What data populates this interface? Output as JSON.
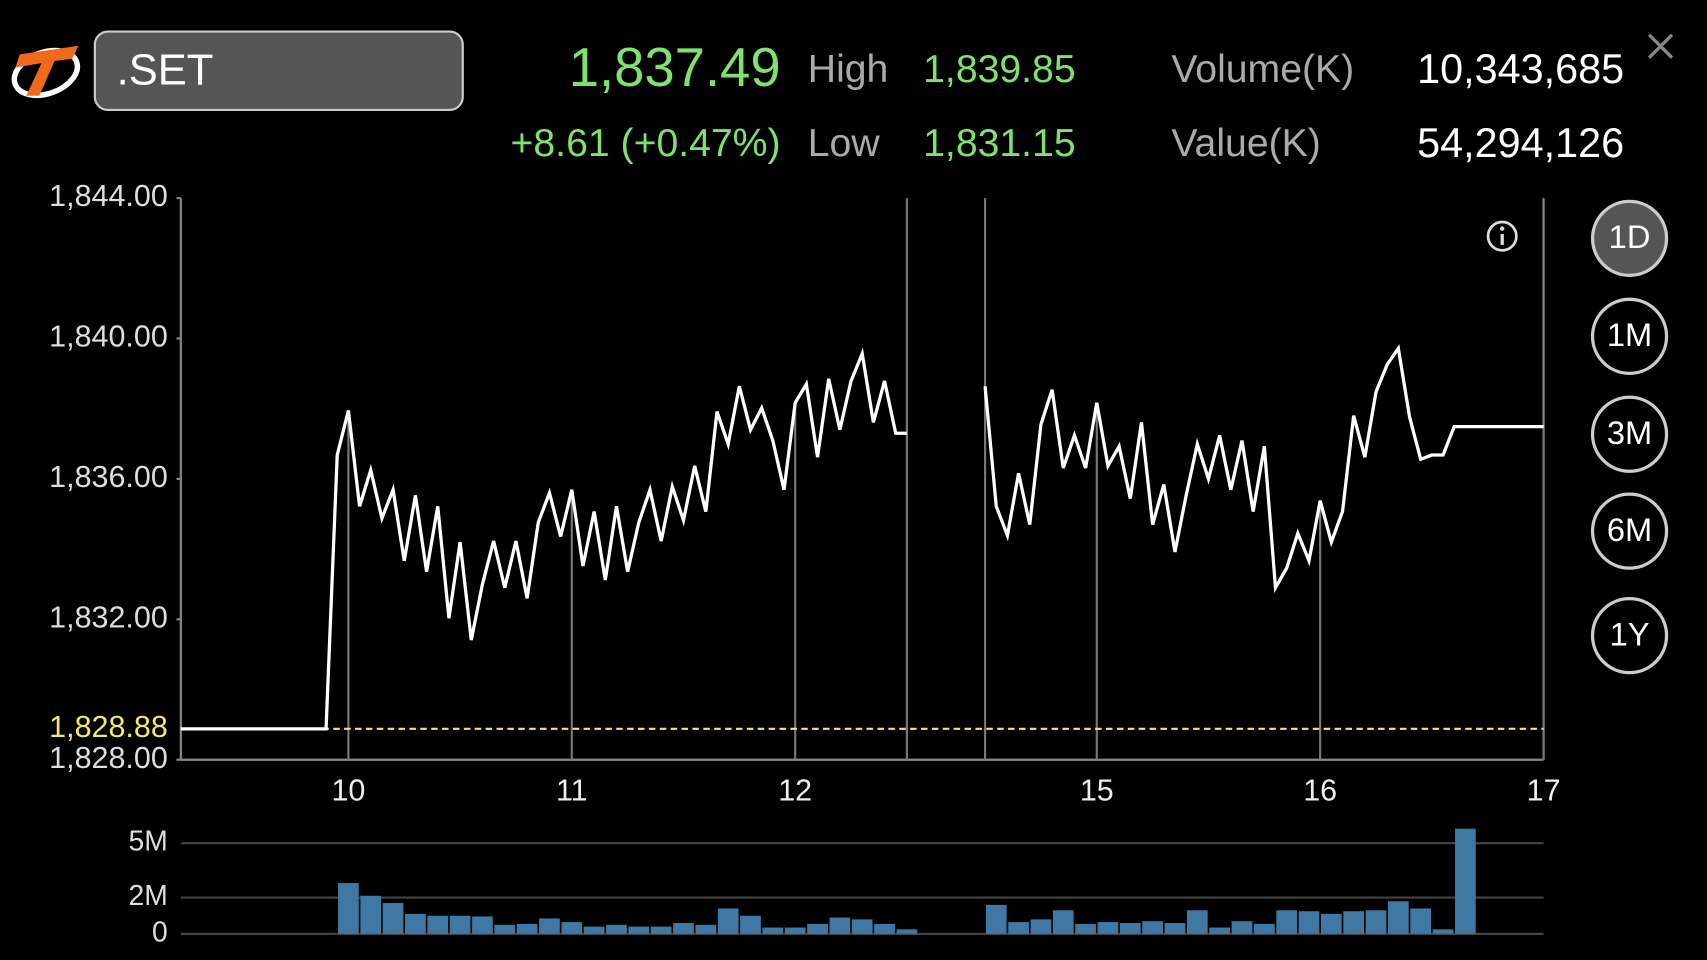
{
  "header": {
    "symbol": ".SET",
    "last": "1,837.49",
    "change": "+8.61 (+0.47%)",
    "high_label": "High",
    "high": "1,839.85",
    "low_label": "Low",
    "low": "1,831.15",
    "volume_label": "Volume(K)",
    "volume": "10,343,685",
    "value_label": "Value(K)",
    "value": "54,294,126"
  },
  "periods": [
    "1D",
    "1M",
    "3M",
    "6M",
    "1Y"
  ],
  "selected_period": "1D",
  "chart_data": [
    {
      "type": "line",
      "color": "#ffffff",
      "categories": [
        null,
        null,
        null,
        null,
        null,
        null,
        null,
        null,
        null,
        null,
        null,
        null,
        null,
        null,
        null,
        "10",
        null,
        null,
        null,
        null,
        null,
        null,
        null,
        null,
        null,
        null,
        null,
        null,
        null,
        null,
        null,
        null,
        null,
        null,
        null,
        "11",
        null,
        null,
        null,
        null,
        null,
        null,
        null,
        null,
        null,
        null,
        null,
        null,
        null,
        null,
        null,
        null,
        null,
        null,
        null,
        "12",
        null,
        null,
        null,
        null,
        null,
        null,
        null,
        null,
        null,
        null,
        null,
        null,
        null,
        null,
        null,
        null,
        null,
        null,
        null,
        null,
        null,
        null,
        null,
        null,
        null,
        null,
        "15",
        null,
        null,
        null,
        null,
        null,
        null,
        null,
        null,
        null,
        null,
        null,
        null,
        null,
        null,
        null,
        null,
        null,
        null,
        null,
        "16",
        null,
        null,
        null,
        null,
        null,
        null,
        null,
        null,
        null,
        null,
        null,
        null,
        null,
        null,
        null,
        null,
        null,
        null,
        null,
        "17"
      ],
      "values": [
        1828.88,
        1828.88,
        1828.88,
        1828.88,
        1828.88,
        1828.88,
        1828.88,
        1828.88,
        1828.88,
        1828.88,
        1828.88,
        1828.88,
        1828.88,
        1828.88,
        1836.68,
        1837.95,
        1835.22,
        1836.25,
        1834.88,
        1835.69,
        1833.67,
        1835.53,
        1833.36,
        1835.22,
        1832.03,
        1834.2,
        1831.41,
        1833.0,
        1834.23,
        1832.9,
        1834.23,
        1832.6,
        1834.76,
        1835.6,
        1834.36,
        1835.69,
        1833.52,
        1835.07,
        1833.12,
        1835.22,
        1833.36,
        1834.76,
        1835.69,
        1834.23,
        1835.78,
        1834.82,
        1836.37,
        1835.07,
        1837.92,
        1836.99,
        1838.64,
        1837.4,
        1838.02,
        1837.09,
        1835.69,
        1838.17,
        1838.7,
        1836.62,
        1838.85,
        1837.4,
        1838.79,
        1839.57,
        1837.61,
        1838.79,
        1837.3,
        1837.3,
        null,
        null,
        null,
        null,
        null,
        null,
        1838.64,
        1835.22,
        1834.39,
        1836.16,
        1834.7,
        1837.55,
        1838.54,
        1836.31,
        1837.24,
        1836.31,
        1838.17,
        1836.37,
        1836.93,
        1835.44,
        1837.61,
        1834.7,
        1835.84,
        1833.92,
        1835.53,
        1836.99,
        1836.0,
        1837.24,
        1835.69,
        1837.09,
        1835.07,
        1836.93,
        1832.9,
        1833.46,
        1834.45,
        1833.67,
        1835.38,
        1834.2,
        1835.07,
        1837.8,
        1836.62,
        1838.48,
        1839.26,
        1839.72,
        1837.77,
        1836.56,
        1836.68,
        1836.68,
        1837.49,
        1837.49,
        1837.49,
        1837.49,
        1837.49,
        1837.49,
        1837.49,
        1837.49,
        1837.49
      ],
      "ylim": [
        1828,
        1844
      ],
      "yticks": [
        {
          "value": 1828,
          "label": "1,828.00"
        },
        {
          "value": 1832,
          "label": "1,832.00"
        },
        {
          "value": 1836,
          "label": "1,836.00"
        },
        {
          "value": 1840,
          "label": "1,840.00"
        },
        {
          "value": 1844,
          "label": "1,844.00"
        }
      ],
      "reference_line": {
        "value": 1828.88,
        "label": "1,828.88",
        "color": "#f2e86a"
      }
    },
    {
      "type": "bar",
      "color": "#3f78a3",
      "values": [
        null,
        null,
        null,
        null,
        null,
        null,
        null,
        null,
        null,
        null,
        null,
        null,
        null,
        null,
        null,
        2800000,
        null,
        2100000,
        null,
        1700000,
        null,
        1100000,
        null,
        1000000,
        null,
        1000000,
        null,
        960000,
        null,
        500000,
        null,
        550000,
        null,
        850000,
        null,
        650000,
        null,
        400000,
        null,
        500000,
        null,
        400000,
        null,
        400000,
        null,
        600000,
        null,
        500000,
        null,
        1400000,
        null,
        1000000,
        null,
        350000,
        null,
        350000,
        null,
        550000,
        null,
        900000,
        null,
        800000,
        null,
        550000,
        null,
        250000,
        null,
        null,
        null,
        null,
        null,
        null,
        null,
        1600000,
        null,
        650000,
        null,
        800000,
        null,
        1300000,
        null,
        550000,
        null,
        650000,
        null,
        600000,
        null,
        700000,
        null,
        600000,
        null,
        1300000,
        null,
        350000,
        null,
        700000,
        null,
        550000,
        null,
        1300000,
        null,
        1250000,
        null,
        1100000,
        null,
        1250000,
        null,
        1300000,
        null,
        1800000,
        null,
        1400000,
        null,
        250000,
        null,
        5800000,
        null,
        null,
        null,
        null,
        null,
        null,
        null
      ],
      "ylim": [
        0,
        6000000
      ],
      "yticks": [
        0,
        {
          "value": 2000000,
          "label": "2M"
        },
        {
          "value": 5000000,
          "label": "5M"
        }
      ]
    }
  ]
}
